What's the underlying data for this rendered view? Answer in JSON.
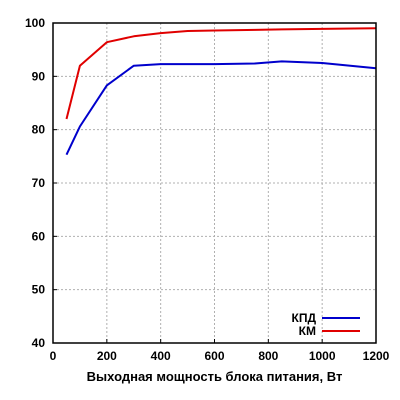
{
  "chart_data": {
    "type": "line",
    "title": "",
    "xlabel": "Выходная мощность блока питания, Вт",
    "ylabel": "",
    "xlim": [
      0,
      1200
    ],
    "ylim": [
      40,
      100
    ],
    "xticks": [
      0,
      200,
      400,
      600,
      800,
      1000,
      1200
    ],
    "yticks": [
      40,
      50,
      60,
      70,
      80,
      90,
      100
    ],
    "grid": true,
    "legend_position": "bottom-right",
    "series": [
      {
        "name": "КПД",
        "color": "#0000cc",
        "x": [
          50,
          100,
          200,
          300,
          400,
          500,
          600,
          750,
          850,
          1000,
          1200
        ],
        "y": [
          75.3,
          80.6,
          88.3,
          92.0,
          92.3,
          92.3,
          92.3,
          92.4,
          92.8,
          92.5,
          91.5
        ]
      },
      {
        "name": "КМ",
        "color": "#e00000",
        "x": [
          50,
          100,
          200,
          300,
          400,
          500,
          600,
          750,
          850,
          1000,
          1200
        ],
        "y": [
          82.0,
          92.0,
          96.4,
          97.5,
          98.1,
          98.5,
          98.6,
          98.7,
          98.8,
          98.9,
          99.0
        ]
      }
    ]
  }
}
